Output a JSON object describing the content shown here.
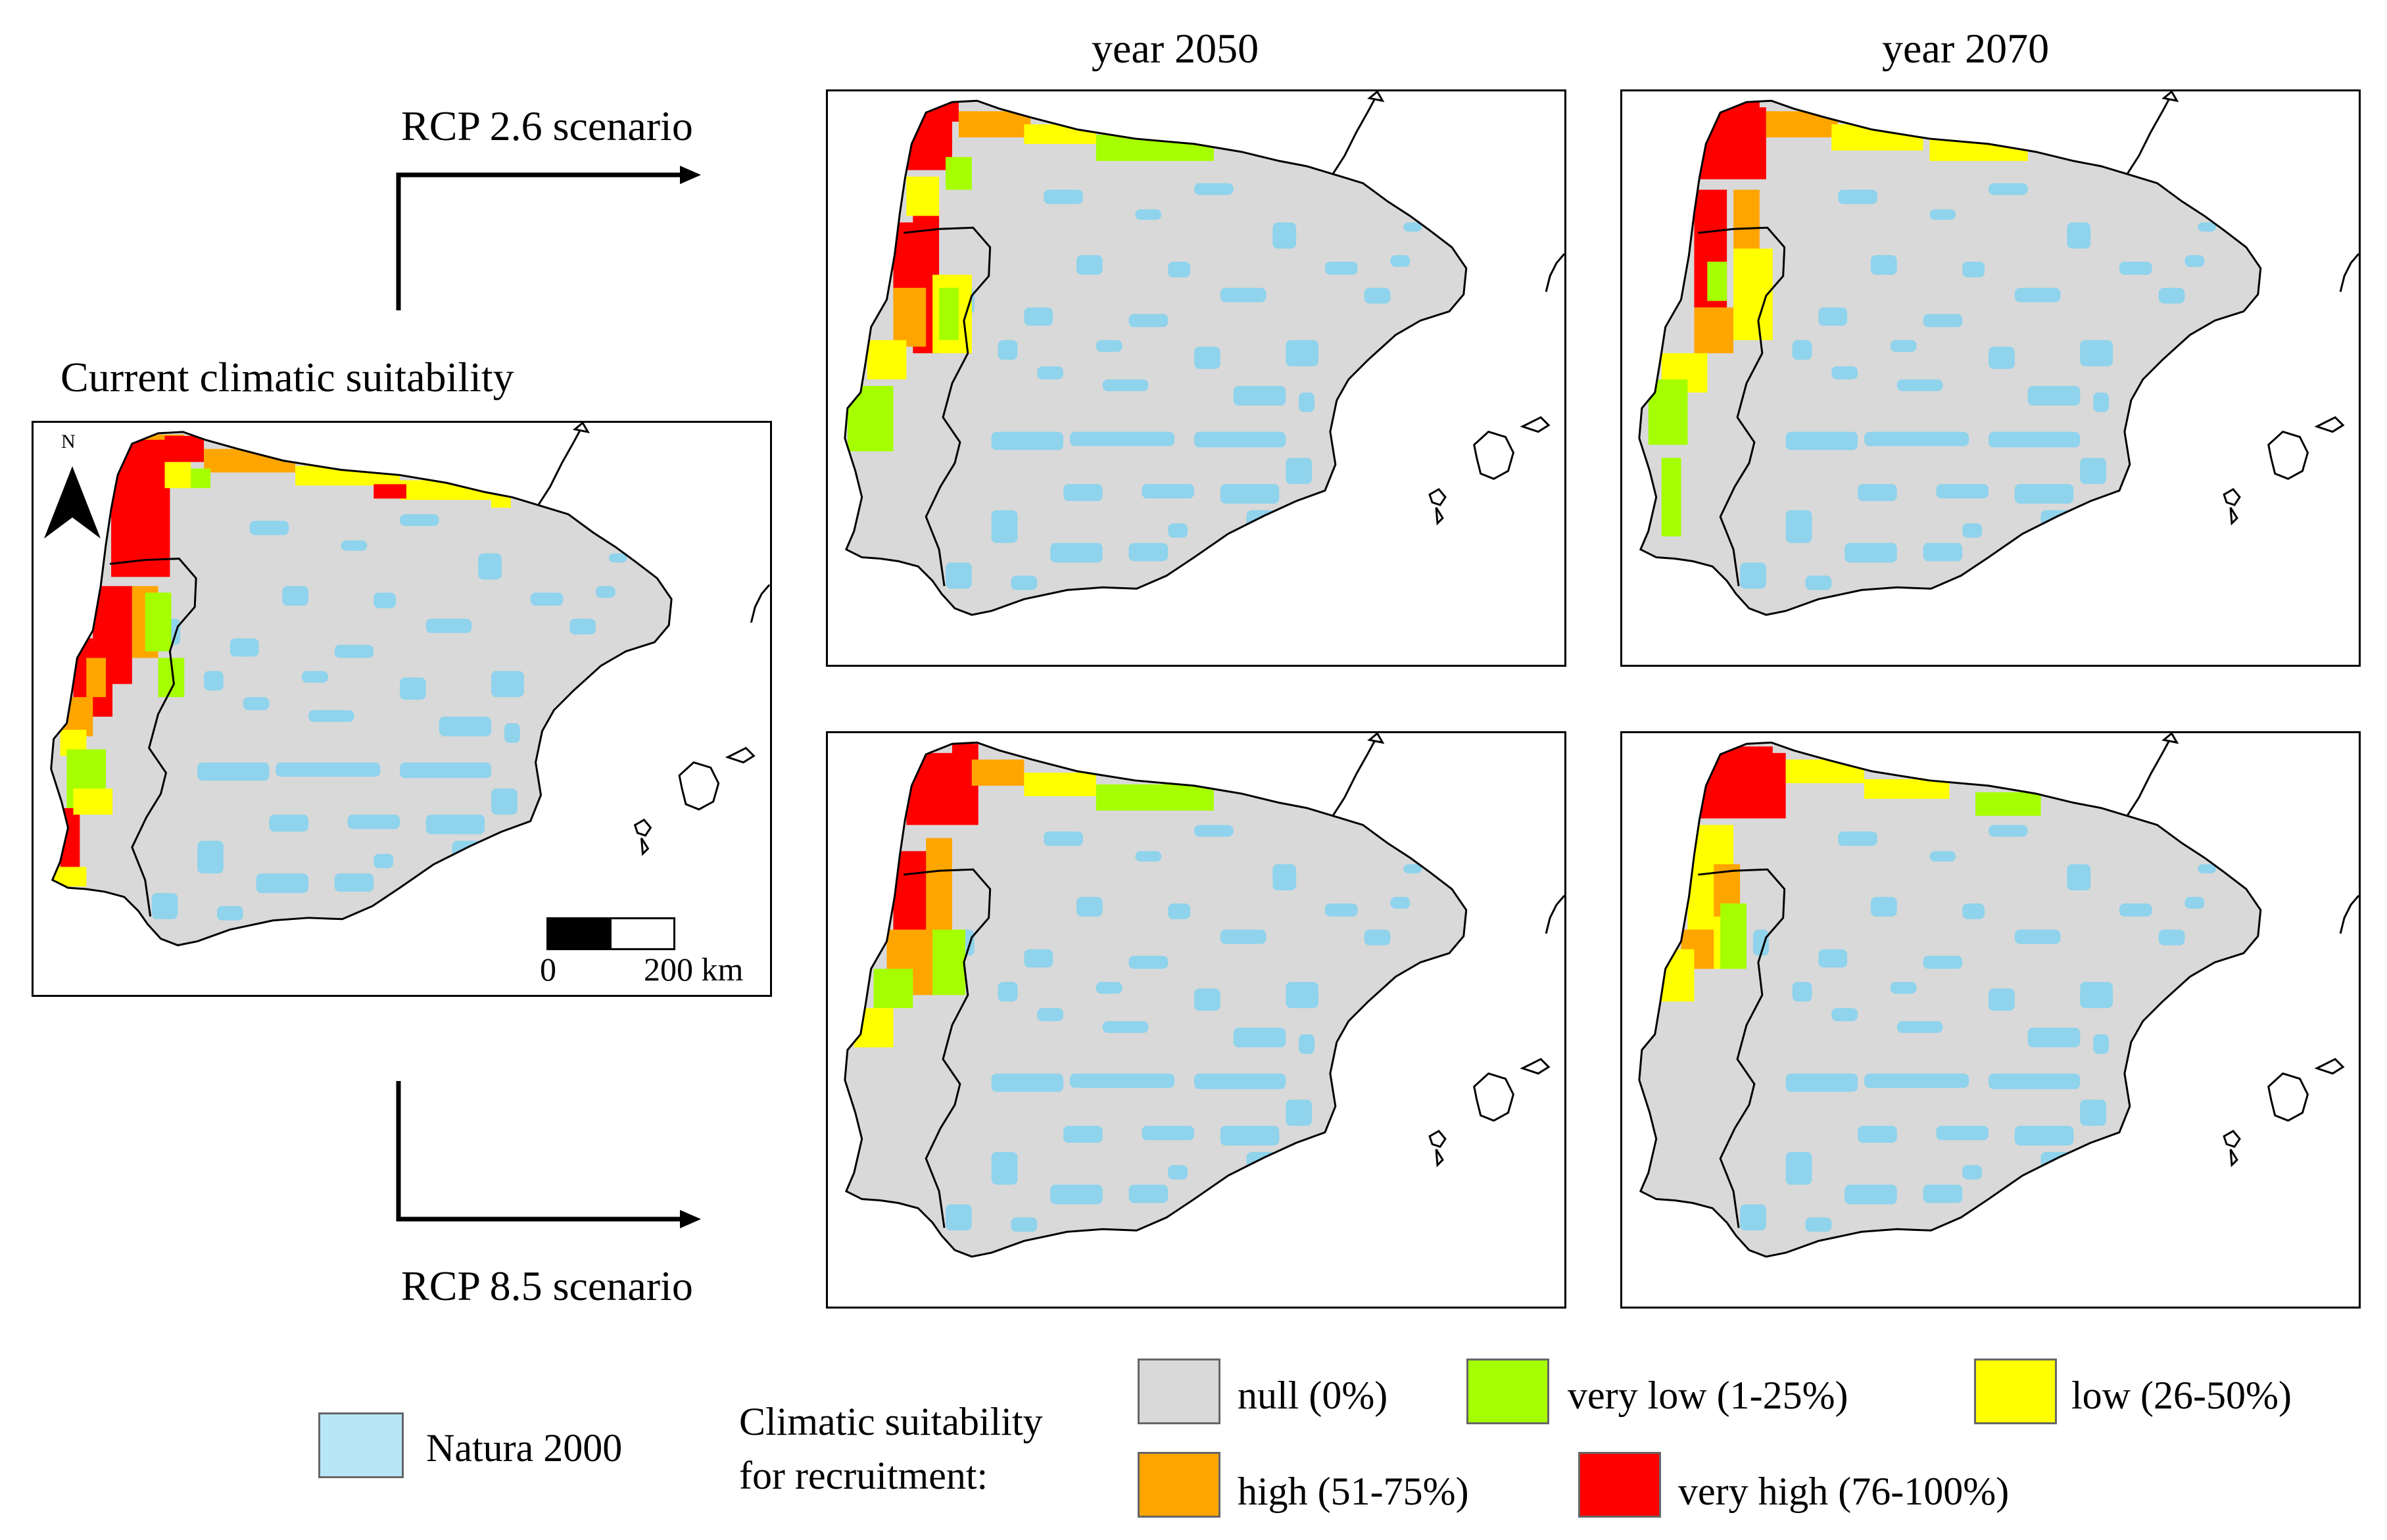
{
  "figure": {
    "current_title": "Current climatic suitability",
    "col_2050": "year 2050",
    "col_2070": "year 2070",
    "rcp26": "RCP 2.6 scenario",
    "rcp85": "RCP 8.5 scenario"
  },
  "current_map": {
    "north_label": "N",
    "scale_zero": "0",
    "scale_max": "200 km"
  },
  "legend": {
    "natura_label": "Natura 2000",
    "title_line1": "Climatic suitability",
    "title_line2": "for recruitment:",
    "classes": [
      {
        "label": "null (0%)",
        "color": "#d9d9d9"
      },
      {
        "label": "very low (1-25%)",
        "color": "#a6ff00"
      },
      {
        "label": "low (26-50%)",
        "color": "#ffff00"
      },
      {
        "label": "high (51-75%)",
        "color": "#ffa500"
      },
      {
        "label": "very high (76-100%)",
        "color": "#ff0000"
      }
    ],
    "natura_color": "#b7e6f7"
  },
  "colors": {
    "land": "#d9d9d9",
    "natura": "#8fd3ec",
    "very_low": "#a6ff00",
    "low": "#ffff00",
    "high": "#ffa500",
    "very_high": "#ff0000"
  }
}
